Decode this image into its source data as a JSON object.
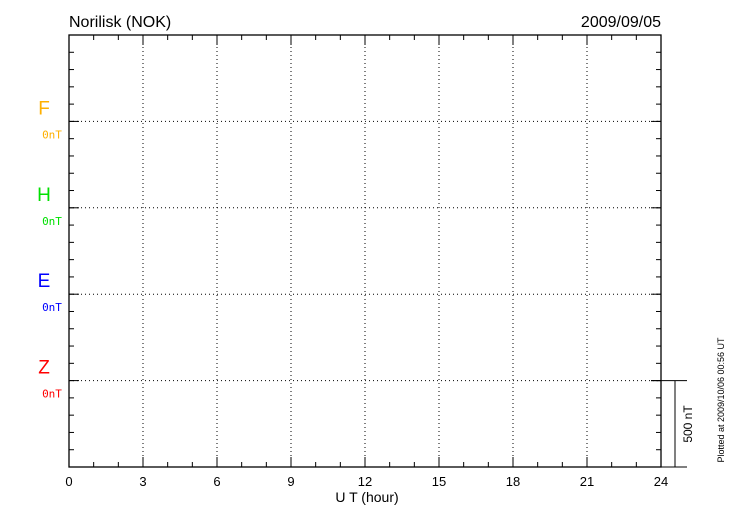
{
  "chart_data": {
    "type": "line",
    "title": "Norilisk (NOK)",
    "date": "2009/09/05",
    "xlabel": "U T (hour)",
    "xlim": [
      0,
      24
    ],
    "xticks": [
      "0",
      "3",
      "6",
      "9",
      "12",
      "15",
      "18",
      "21",
      "24"
    ],
    "grid": true,
    "series": [
      {
        "name": "F",
        "baseline": "0nT",
        "color": "#ffb000",
        "values": []
      },
      {
        "name": "H",
        "baseline": "0nT",
        "color": "#00e000",
        "values": []
      },
      {
        "name": "E",
        "baseline": "0nT",
        "color": "#0000ff",
        "values": []
      },
      {
        "name": "Z",
        "baseline": "0nT",
        "color": "#ff0000",
        "values": []
      }
    ],
    "scale_bar": "500 nT",
    "footnote": "Plotted at 2009/10/06 00:56 UT"
  }
}
